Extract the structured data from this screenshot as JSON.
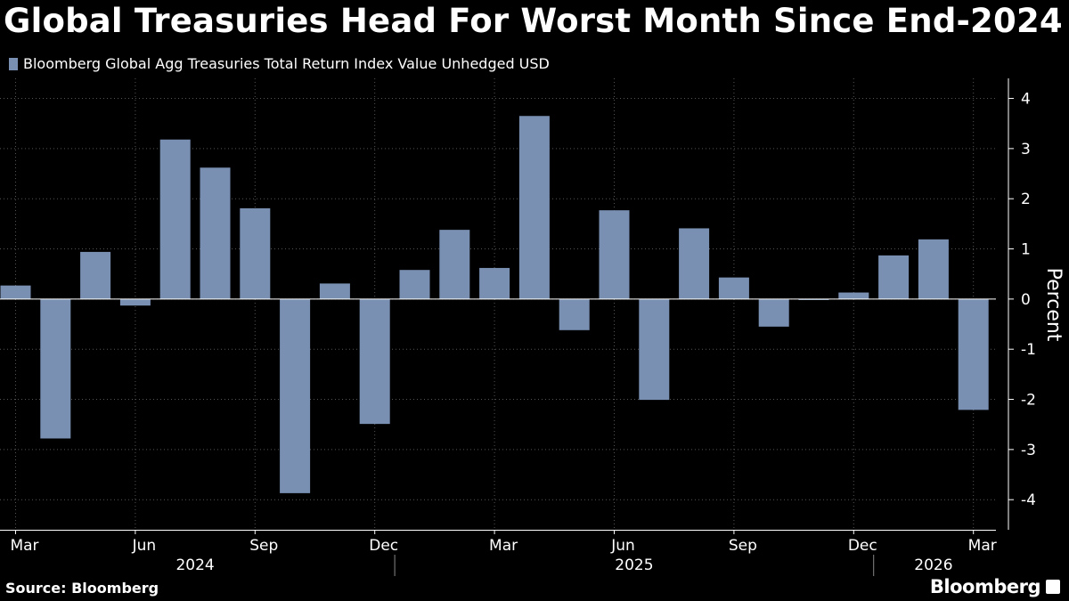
{
  "title": "Global Treasuries Head For Worst Month Since End-2024",
  "source": "Source: Bloomberg",
  "brand": "Bloomberg",
  "colors": {
    "background": "#000000",
    "bar": "#7990b3",
    "grid": "#555555",
    "text": "#ffffff"
  },
  "chart_data": {
    "type": "bar",
    "title": "Global Treasuries Head For Worst Month Since End-2024",
    "legend": [
      "Bloomberg Global Agg Treasuries Total Return Index Value Unhedged USD"
    ],
    "legend_position": "top-left",
    "ylabel": "Percent",
    "ylim": [
      -4.6,
      4.4
    ],
    "yticks": [
      4,
      3,
      2,
      1,
      0,
      -1,
      -2,
      -3,
      -4
    ],
    "grid": true,
    "categories": [
      "2024-03",
      "2024-04",
      "2024-05",
      "2024-06",
      "2024-07",
      "2024-08",
      "2024-09",
      "2024-10",
      "2024-11",
      "2024-12",
      "2025-01",
      "2025-02",
      "2025-03",
      "2025-04",
      "2025-05",
      "2025-06",
      "2025-07",
      "2025-08",
      "2025-09",
      "2025-10",
      "2025-11",
      "2025-12",
      "2026-01",
      "2026-02",
      "2026-03"
    ],
    "values": [
      0.27,
      -2.78,
      0.94,
      -0.13,
      3.18,
      2.62,
      1.81,
      -3.87,
      0.31,
      -2.49,
      0.58,
      1.38,
      0.62,
      3.65,
      -0.62,
      1.77,
      -2.01,
      1.41,
      0.43,
      -0.55,
      -0.02,
      0.13,
      0.87,
      1.19,
      -2.21
    ],
    "xtick_labels": [
      {
        "label": "Mar",
        "index": 0
      },
      {
        "label": "Jun",
        "index": 3
      },
      {
        "label": "Sep",
        "index": 6
      },
      {
        "label": "Dec",
        "index": 9
      },
      {
        "label": "Mar",
        "index": 12
      },
      {
        "label": "Jun",
        "index": 15
      },
      {
        "label": "Sep",
        "index": 18
      },
      {
        "label": "Dec",
        "index": 21
      },
      {
        "label": "Mar",
        "index": 24
      }
    ],
    "years": [
      {
        "label": "2024",
        "start": 0,
        "end": 9
      },
      {
        "label": "2025",
        "start": 10,
        "end": 21
      },
      {
        "label": "2026",
        "start": 22,
        "end": 24
      }
    ]
  }
}
